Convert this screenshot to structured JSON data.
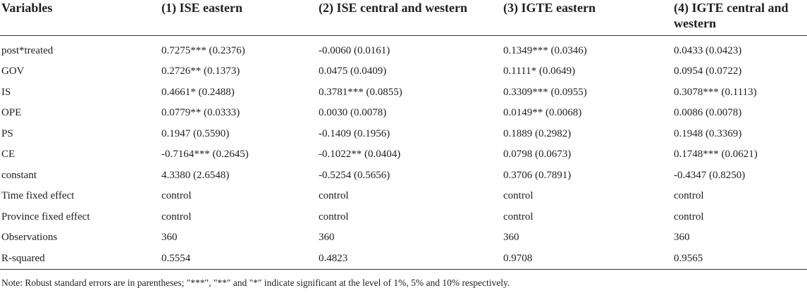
{
  "table": {
    "headers": [
      "Variables",
      "(1) ISE eastern",
      "(2) ISE central and western",
      "(3) IGTE eastern",
      "(4) IGTE central and western"
    ],
    "rows": [
      [
        "post*treated",
        "0.7275*** (0.2376)",
        "-0.0060 (0.0161)",
        "0.1349*** (0.0346)",
        "0.0433 (0.0423)"
      ],
      [
        "GOV",
        "0.2726** (0.1373)",
        "0.0475 (0.0409)",
        "0.1111* (0.0649)",
        "0.0954 (0.0722)"
      ],
      [
        "IS",
        "0.4661* (0.2488)",
        "0.3781*** (0.0855)",
        "0.3309*** (0.0955)",
        "0.3078*** (0.1113)"
      ],
      [
        "OPE",
        "0.0779** (0.0333)",
        "0.0030 (0.0078)",
        "0.0149** (0.0068)",
        "0.0086 (0.0078)"
      ],
      [
        "PS",
        "0.1947 (0.5590)",
        "-0.1409 (0.1956)",
        "0.1889 (0.2982)",
        "0.1948 (0.3369)"
      ],
      [
        "CE",
        "-0.7164*** (0.2645)",
        "-0.1022** (0.0404)",
        "0.0798 (0.0673)",
        "0.1748*** (0.0621)"
      ],
      [
        "constant",
        "4.3380 (2.6548)",
        "-0.5254 (0.5656)",
        "0.3706 (0.7891)",
        "-0.4347 (0.8250)"
      ],
      [
        "Time fixed effect",
        "control",
        "control",
        "control",
        "control"
      ],
      [
        "Province fixed effect",
        "control",
        "control",
        "control",
        "control"
      ],
      [
        "Observations",
        "360",
        "360",
        "360",
        "360"
      ],
      [
        "R-squared",
        "0.5554",
        "0.4823",
        "0.9708",
        "0.9565"
      ]
    ]
  },
  "note": "Note: Robust standard errors are in parentheses; \"***\", \"**\" and \"*\" indicate significant at the level of 1%, 5% and 10% respectively."
}
